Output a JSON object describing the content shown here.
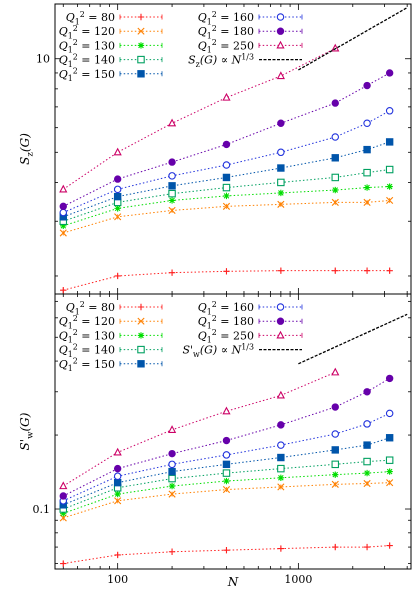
{
  "chart_data": [
    {
      "type": "line",
      "panel": "top",
      "xscale": "log",
      "yscale": "log",
      "xlim": [
        45,
        4200
      ],
      "ylim": [
        1.75,
        15
      ],
      "xlabel": "",
      "ylabel": "S_z(G)",
      "yticks": [
        {
          "value": 10,
          "label": "10"
        }
      ],
      "legend_position": "top",
      "grid": false,
      "x": [
        50,
        100,
        200,
        400,
        800,
        1600,
        2400,
        3200
      ],
      "series": [
        {
          "name": "Q_1^2 = 80",
          "color": "#ff2020",
          "marker": "plus",
          "values": [
            1.8,
            2.0,
            2.05,
            2.07,
            2.08,
            2.08,
            2.08,
            2.08
          ]
        },
        {
          "name": "Q_1^2 = 120",
          "color": "#ff8000",
          "marker": "cross",
          "values": [
            2.75,
            3.1,
            3.25,
            3.35,
            3.4,
            3.45,
            3.45,
            3.5
          ]
        },
        {
          "name": "Q_1^2 = 130",
          "color": "#00dd00",
          "marker": "star",
          "values": [
            2.9,
            3.3,
            3.5,
            3.62,
            3.7,
            3.78,
            3.85,
            3.88
          ]
        },
        {
          "name": "Q_1^2 = 140",
          "color": "#00a060",
          "marker": "open-square",
          "values": [
            3.0,
            3.45,
            3.68,
            3.85,
            4.0,
            4.15,
            4.3,
            4.4
          ]
        },
        {
          "name": "Q_1^2 = 150",
          "color": "#0055aa",
          "marker": "filled-square",
          "values": [
            3.1,
            3.6,
            3.9,
            4.15,
            4.45,
            4.8,
            5.1,
            5.4
          ]
        },
        {
          "name": "Q_1^2 = 160",
          "color": "#2233dd",
          "marker": "open-circle",
          "values": [
            3.2,
            3.8,
            4.2,
            4.55,
            5.0,
            5.6,
            6.2,
            6.8
          ]
        },
        {
          "name": "Q_1^2 = 180",
          "color": "#6600aa",
          "marker": "filled-circle",
          "values": [
            3.35,
            4.1,
            4.65,
            5.3,
            6.2,
            7.2,
            8.2,
            9.0
          ]
        },
        {
          "name": "Q_1^2 = 250",
          "color": "#cc0066",
          "marker": "open-triangle",
          "values": [
            3.8,
            5.0,
            6.2,
            7.5,
            8.8,
            10.8,
            null,
            null
          ]
        }
      ],
      "guide": {
        "name": "S_z(G) ∝ N^{1/3}",
        "x": [
          1000,
          4000
        ],
        "y": [
          9.2,
          14.6
        ]
      }
    },
    {
      "type": "line",
      "panel": "bottom",
      "xscale": "log",
      "yscale": "log",
      "xlim": [
        45,
        4200
      ],
      "ylim": [
        0.057,
        0.75
      ],
      "xlabel": "N",
      "ylabel": "S'_w(G)",
      "xticks": [
        {
          "value": 100,
          "label": "100"
        },
        {
          "value": 1000,
          "label": "1000"
        }
      ],
      "yticks": [
        {
          "value": 0.1,
          "label": "0.1"
        }
      ],
      "legend_position": "top",
      "grid": false,
      "x": [
        50,
        100,
        200,
        400,
        800,
        1600,
        2400,
        3200
      ],
      "series": [
        {
          "name": "Q_1^2 = 80",
          "color": "#ff2020",
          "marker": "plus",
          "values": [
            0.06,
            0.065,
            0.067,
            0.068,
            0.069,
            0.07,
            0.07,
            0.071
          ]
        },
        {
          "name": "Q_1^2 = 120",
          "color": "#ff8000",
          "marker": "cross",
          "values": [
            0.092,
            0.108,
            0.115,
            0.12,
            0.123,
            0.126,
            0.127,
            0.128
          ]
        },
        {
          "name": "Q_1^2 = 130",
          "color": "#00dd00",
          "marker": "star",
          "values": [
            0.096,
            0.115,
            0.124,
            0.13,
            0.134,
            0.138,
            0.14,
            0.142
          ]
        },
        {
          "name": "Q_1^2 = 140",
          "color": "#00a060",
          "marker": "open-square",
          "values": [
            0.1,
            0.122,
            0.133,
            0.14,
            0.146,
            0.152,
            0.156,
            0.158
          ]
        },
        {
          "name": "Q_1^2 = 150",
          "color": "#0055aa",
          "marker": "filled-square",
          "values": [
            0.104,
            0.128,
            0.142,
            0.152,
            0.162,
            0.174,
            0.182,
            0.195
          ]
        },
        {
          "name": "Q_1^2 = 160",
          "color": "#2233dd",
          "marker": "open-circle",
          "values": [
            0.108,
            0.136,
            0.152,
            0.166,
            0.182,
            0.202,
            0.222,
            0.245
          ]
        },
        {
          "name": "Q_1^2 = 180",
          "color": "#6600aa",
          "marker": "filled-circle",
          "values": [
            0.113,
            0.146,
            0.168,
            0.19,
            0.22,
            0.26,
            0.3,
            0.34
          ]
        },
        {
          "name": "Q_1^2 = 250",
          "color": "#cc0066",
          "marker": "open-triangle",
          "values": [
            0.124,
            0.17,
            0.21,
            0.25,
            0.29,
            0.36,
            null,
            null
          ]
        }
      ],
      "guide": {
        "name": "S'_w(G) ∝ N^{1/3}",
        "x": [
          1000,
          4000
        ],
        "y": [
          0.39,
          0.62
        ]
      }
    }
  ]
}
